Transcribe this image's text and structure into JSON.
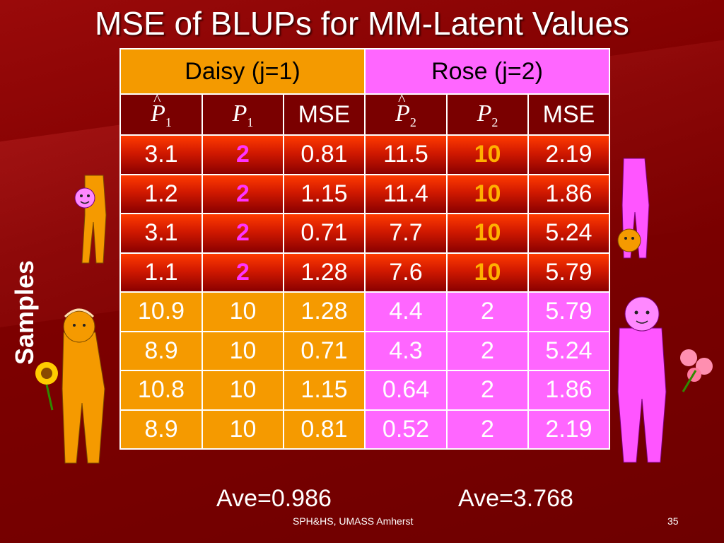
{
  "title": "MSE of BLUPs for MM-Latent Values",
  "table": {
    "group_headers": [
      "Daisy (j=1)",
      "Rose (j=2)"
    ],
    "symbols": [
      "P̂1",
      "P1",
      "MSE",
      "P̂2",
      "P2",
      "MSE"
    ],
    "symbol_parts": [
      {
        "base": "P",
        "sub": "1",
        "hat": true
      },
      {
        "base": "P",
        "sub": "1",
        "hat": false
      },
      {
        "text": "MSE"
      },
      {
        "base": "P",
        "sub": "2",
        "hat": true
      },
      {
        "base": "P",
        "sub": "2",
        "hat": false
      },
      {
        "text": "MSE"
      }
    ],
    "rows": [
      [
        "3.1",
        "2",
        "0.81",
        "11.5",
        "10",
        "2.19"
      ],
      [
        "1.2",
        "2",
        "1.15",
        "11.4",
        "10",
        "1.86"
      ],
      [
        "3.1",
        "2",
        "0.71",
        "7.7",
        "10",
        "5.24"
      ],
      [
        "1.1",
        "2",
        "1.28",
        "7.6",
        "10",
        "5.79"
      ],
      [
        "10.9",
        "10",
        "1.28",
        "4.4",
        "2",
        "5.79"
      ],
      [
        "8.9",
        "10",
        "0.71",
        "4.3",
        "2",
        "5.24"
      ],
      [
        "10.8",
        "10",
        "1.15",
        "0.64",
        "2",
        "1.86"
      ],
      [
        "8.9",
        "10",
        "0.81",
        "0.52",
        "2",
        "2.19"
      ]
    ]
  },
  "averages": {
    "daisy": "Ave=0.986",
    "rose": "Ave=3.768"
  },
  "side_label": "Samples",
  "footer": {
    "center": "SPH&HS, UMASS  Amherst",
    "page": "35"
  },
  "colors": {
    "background": "#7d0000",
    "daisy": "#f59a00",
    "rose": "#ff66ff",
    "red_rows": "#d11900",
    "highlight_magenta": "#ff33ff",
    "highlight_gold": "#ffb000"
  }
}
